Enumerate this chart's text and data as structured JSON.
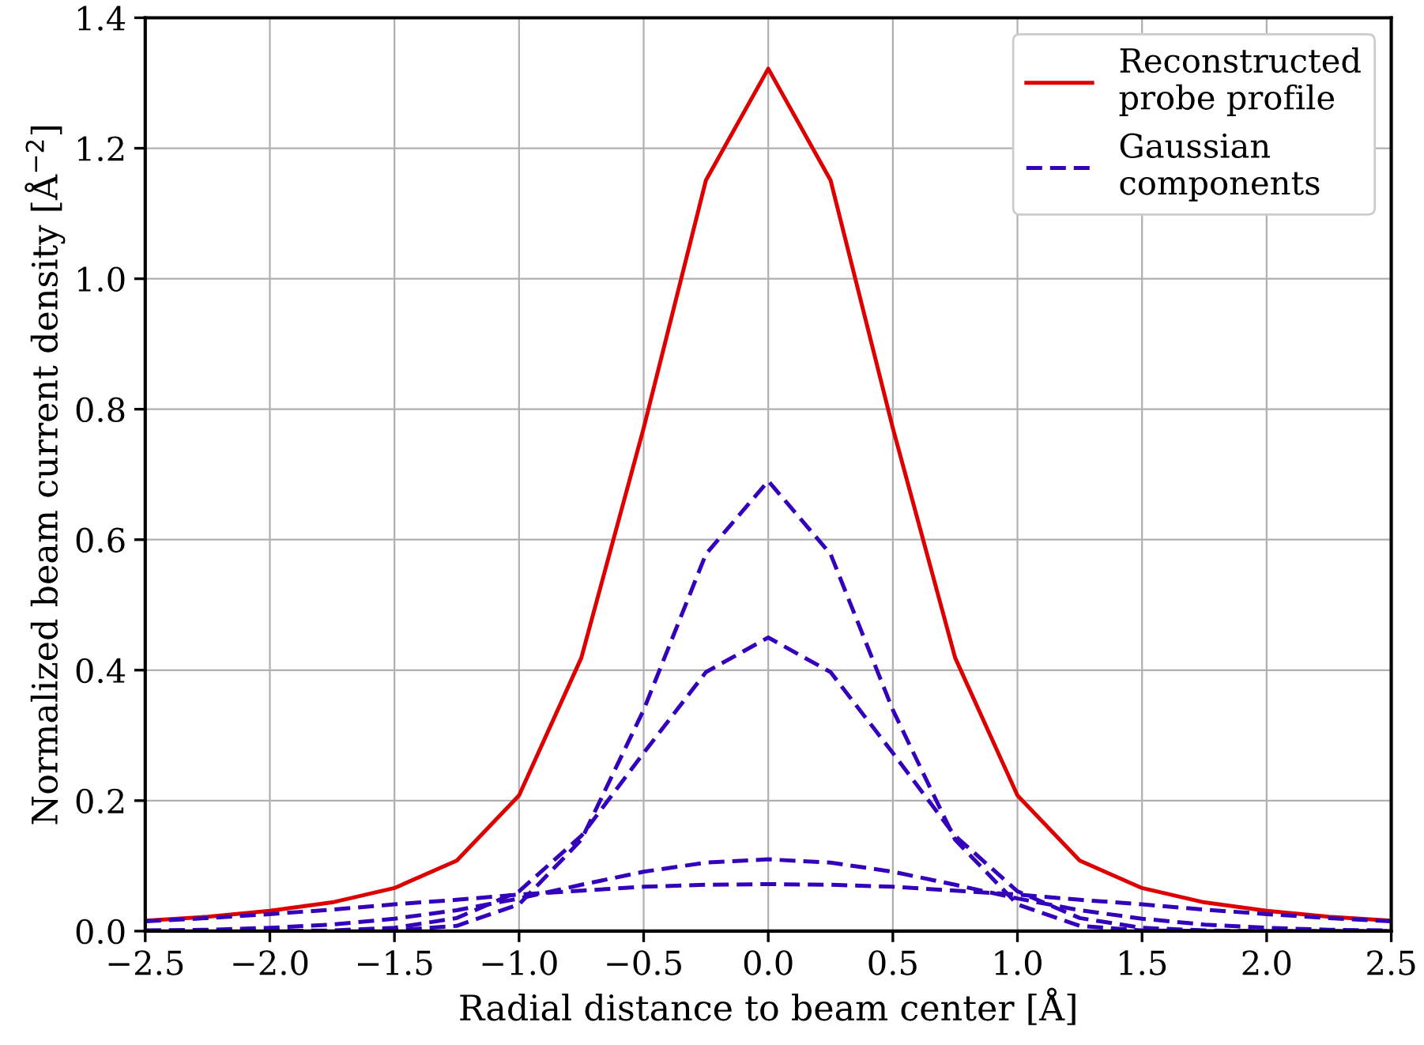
{
  "chart_data": {
    "type": "line",
    "xlabel": "Radial distance to beam center [Å]",
    "ylabel": "Normalized beam current density [Å$^{−2}$]",
    "x": [
      -2.5,
      -2.25,
      -2.0,
      -1.75,
      -1.5,
      -1.25,
      -1.0,
      -0.75,
      -0.5,
      -0.25,
      0.0,
      0.25,
      0.5,
      0.75,
      1.0,
      1.25,
      1.5,
      1.75,
      2.0,
      2.25,
      2.5
    ],
    "series": [
      {
        "name": "Reconstructed\nprobe profile",
        "color": "#dd0000",
        "line_style": "solid",
        "values": [
          0.016,
          0.022,
          0.031,
          0.044,
          0.066,
          0.108,
          0.208,
          0.419,
          0.771,
          1.151,
          1.322,
          1.151,
          0.771,
          0.419,
          0.208,
          0.108,
          0.066,
          0.044,
          0.031,
          0.022,
          0.016
        ]
      },
      {
        "name": "Gaussian\ncomponents",
        "color": "#3300bb",
        "line_style": "dashed",
        "values": [
          0.0,
          0.0,
          0.0,
          0.0,
          0.001,
          0.008,
          0.041,
          0.14,
          0.339,
          0.578,
          0.69,
          0.578,
          0.339,
          0.14,
          0.041,
          0.008,
          0.001,
          0.0,
          0.0,
          0.0,
          0.0
        ]
      },
      {
        "color": "#3300bb",
        "line_style": "dashed",
        "values": [
          0.0,
          0.0,
          0.0,
          0.001,
          0.005,
          0.02,
          0.061,
          0.146,
          0.273,
          0.397,
          0.45,
          0.397,
          0.273,
          0.146,
          0.061,
          0.02,
          0.005,
          0.001,
          0.0,
          0.0,
          0.0
        ]
      },
      {
        "color": "#3300bb",
        "line_style": "dashed",
        "values": [
          0.001,
          0.002,
          0.005,
          0.01,
          0.019,
          0.032,
          0.05,
          0.071,
          0.091,
          0.105,
          0.11,
          0.105,
          0.091,
          0.071,
          0.05,
          0.032,
          0.019,
          0.01,
          0.005,
          0.002,
          0.001
        ]
      },
      {
        "color": "#3300bb",
        "line_style": "dashed",
        "values": [
          0.015,
          0.02,
          0.026,
          0.033,
          0.041,
          0.048,
          0.056,
          0.062,
          0.068,
          0.071,
          0.072,
          0.071,
          0.068,
          0.062,
          0.056,
          0.048,
          0.041,
          0.033,
          0.026,
          0.02,
          0.015
        ]
      }
    ],
    "xlim": [
      -2.5,
      2.5
    ],
    "ylim": [
      0.0,
      1.4
    ],
    "xticks": [
      {
        "value": -2.5,
        "label": "−2.5"
      },
      {
        "value": -2.0,
        "label": "−2.0"
      },
      {
        "value": -1.5,
        "label": "−1.5"
      },
      {
        "value": -1.0,
        "label": "−1.0"
      },
      {
        "value": -0.5,
        "label": "−0.5"
      },
      {
        "value": 0.0,
        "label": "0.0"
      },
      {
        "value": 0.5,
        "label": "0.5"
      },
      {
        "value": 1.0,
        "label": "1.0"
      },
      {
        "value": 1.5,
        "label": "1.5"
      },
      {
        "value": 2.0,
        "label": "2.0"
      },
      {
        "value": 2.5,
        "label": "2.5"
      }
    ],
    "yticks": [
      {
        "value": 0.0,
        "label": "0.0"
      },
      {
        "value": 0.2,
        "label": "0.2"
      },
      {
        "value": 0.4,
        "label": "0.4"
      },
      {
        "value": 0.6,
        "label": "0.6"
      },
      {
        "value": 0.8,
        "label": "0.8"
      },
      {
        "value": 1.0,
        "label": "1.0"
      },
      {
        "value": 1.2,
        "label": "1.2"
      },
      {
        "value": 1.4,
        "label": "1.4"
      }
    ],
    "grid": true,
    "legend": "top right",
    "marker": "none"
  }
}
